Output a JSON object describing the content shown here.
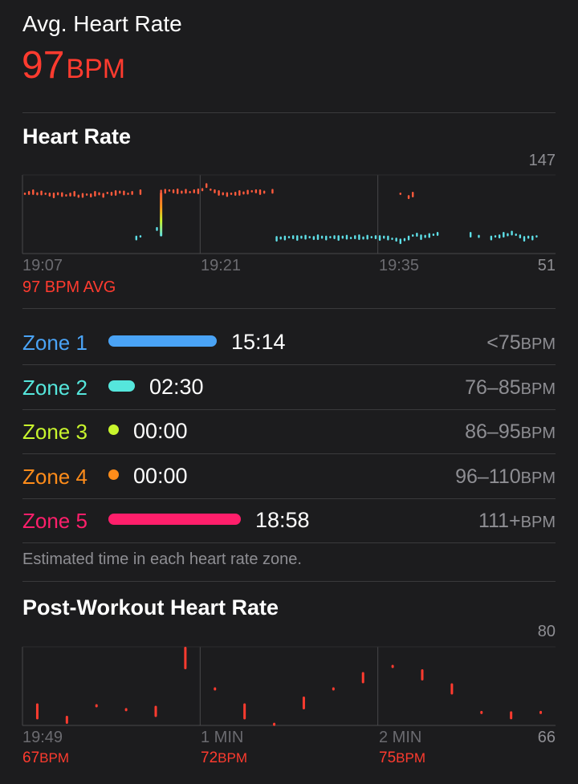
{
  "summary": {
    "label": "Avg. Heart Rate",
    "value": "97",
    "unit": "BPM",
    "accent": "#ff3b2f"
  },
  "heart_rate": {
    "title": "Heart Rate",
    "y_max_label": "147",
    "y_min_label": "51",
    "x_labels": [
      "19:07",
      "19:21",
      "19:35"
    ],
    "avg_label": "97 BPM AVG"
  },
  "zones": [
    {
      "name": "Zone 1",
      "time": "15:14",
      "range": "<75",
      "unit": "BPM",
      "color": "#4aa3f5",
      "fraction": 0.45
    },
    {
      "name": "Zone 2",
      "time": "02:30",
      "range": "76–85",
      "unit": "BPM",
      "color": "#55e6dc",
      "fraction": 0.11
    },
    {
      "name": "Zone 3",
      "time": "00:00",
      "range": "86–95",
      "unit": "BPM",
      "color": "#c8f52d",
      "fraction": 0
    },
    {
      "name": "Zone 4",
      "time": "00:00",
      "range": "96–110",
      "unit": "BPM",
      "color": "#ff8c1a",
      "fraction": 0
    },
    {
      "name": "Zone 5",
      "time": "18:58",
      "range": "111+",
      "unit": "BPM",
      "color": "#ff1f6b",
      "fraction": 0.55
    }
  ],
  "zones_note": "Estimated time in each heart rate zone.",
  "post_workout": {
    "title": "Post-Workout Heart Rate",
    "y_max_label": "80",
    "y_min_label": "66",
    "x_labels": [
      "19:49",
      "1 MIN",
      "2 MIN"
    ],
    "stats": [
      {
        "value": "67",
        "unit": "BPM"
      },
      {
        "value": "72",
        "unit": "BPM"
      },
      {
        "value": "75",
        "unit": "BPM"
      }
    ]
  },
  "chart_data": [
    {
      "type": "scatter",
      "title": "Heart Rate",
      "ylim": [
        51,
        147
      ],
      "x_ticks": [
        "19:07",
        "19:21",
        "19:35"
      ],
      "grid": true,
      "series": [
        {
          "color": "#ff5a3c",
          "points": [
            [
              0,
              124
            ],
            [
              0.5,
              125
            ],
            [
              1,
              126
            ],
            [
              1.5,
              124
            ],
            [
              2,
              125
            ],
            [
              2.5,
              124
            ],
            [
              3,
              123
            ],
            [
              3.5,
              122
            ],
            [
              4,
              124
            ],
            [
              4.5,
              123
            ],
            [
              5,
              122
            ],
            [
              5.5,
              123
            ],
            [
              6,
              124
            ],
            [
              6.5,
              121
            ],
            [
              7,
              122
            ],
            [
              7.5,
              123
            ],
            [
              8,
              122
            ],
            [
              8.5,
              124
            ],
            [
              9,
              124
            ],
            [
              9.5,
              122
            ],
            [
              10,
              125
            ],
            [
              10.5,
              124
            ],
            [
              11,
              125
            ],
            [
              11.5,
              126
            ],
            [
              12,
              125
            ],
            [
              12.5,
              124
            ],
            [
              13,
              125
            ],
            [
              14,
              126
            ],
            [
              16.5,
              127
            ],
            [
              17,
              127
            ],
            [
              17.5,
              128
            ],
            [
              18,
              127
            ],
            [
              18.5,
              127
            ],
            [
              19,
              126
            ],
            [
              19.5,
              127
            ],
            [
              20,
              126
            ],
            [
              20.5,
              127
            ],
            [
              21,
              127
            ],
            [
              21.5,
              129
            ],
            [
              22,
              134
            ],
            [
              22.5,
              129
            ],
            [
              23,
              127
            ],
            [
              23.5,
              125
            ],
            [
              24,
              124
            ],
            [
              24.5,
              123
            ],
            [
              25,
              124
            ],
            [
              25.5,
              124
            ],
            [
              26,
              125
            ],
            [
              26.5,
              125
            ],
            [
              27,
              126
            ],
            [
              27.5,
              127
            ],
            [
              28,
              127
            ],
            [
              28.5,
              126
            ],
            [
              29,
              126
            ],
            [
              30,
              127
            ],
            [
              45.5,
              124
            ],
            [
              46.5,
              120
            ],
            [
              47,
              123
            ]
          ]
        },
        {
          "color": "#5ee0e8",
          "points": [
            [
              13.5,
              70
            ],
            [
              14,
              72
            ],
            [
              16,
              81
            ],
            [
              30.5,
              69
            ],
            [
              31,
              70
            ],
            [
              31.5,
              70
            ],
            [
              32,
              71
            ],
            [
              32.5,
              71
            ],
            [
              33,
              70
            ],
            [
              33.5,
              71
            ],
            [
              34,
              71
            ],
            [
              34.5,
              71
            ],
            [
              35,
              70
            ],
            [
              35.5,
              71
            ],
            [
              36,
              71
            ],
            [
              36.5,
              70
            ],
            [
              37,
              71
            ],
            [
              37.5,
              71
            ],
            [
              38,
              70
            ],
            [
              38.5,
              71
            ],
            [
              39,
              71
            ],
            [
              39.5,
              70
            ],
            [
              40,
              71
            ],
            [
              40.5,
              71
            ],
            [
              41,
              70
            ],
            [
              41.5,
              71
            ],
            [
              42,
              71
            ],
            [
              42.5,
              71
            ],
            [
              43,
              70
            ],
            [
              43.5,
              71
            ],
            [
              44,
              70
            ],
            [
              44.5,
              69
            ],
            [
              45,
              68
            ],
            [
              45.5,
              66
            ],
            [
              46,
              68
            ],
            [
              46.5,
              70
            ],
            [
              47,
              73
            ],
            [
              47.5,
              74
            ],
            [
              48,
              71
            ],
            [
              48.5,
              72
            ],
            [
              49,
              73
            ],
            [
              49.5,
              74
            ],
            [
              50,
              75
            ],
            [
              54,
              74
            ],
            [
              55,
              72
            ],
            [
              56.5,
              70
            ],
            [
              57,
              72
            ],
            [
              57.5,
              72
            ],
            [
              58,
              74
            ],
            [
              58.5,
              74
            ],
            [
              59,
              76
            ],
            [
              59.5,
              74
            ],
            [
              60,
              72
            ],
            [
              60.5,
              69
            ],
            [
              61,
              71
            ],
            [
              61.5,
              70
            ],
            [
              62,
              72
            ]
          ]
        }
      ]
    },
    {
      "type": "scatter",
      "title": "Post-Workout Heart Rate",
      "ylim": [
        66,
        80
      ],
      "x_ticks": [
        "19:49",
        "1 MIN",
        "2 MIN"
      ],
      "grid": true,
      "series": [
        {
          "color": "#ff3b2f",
          "points": [
            [
              5,
              68.5
            ],
            [
              15,
              67
            ],
            [
              25,
              69.5
            ],
            [
              35,
              68.8
            ],
            [
              45,
              68.5
            ],
            [
              55,
              78
            ],
            [
              65,
              72.5
            ],
            [
              75,
              68.5
            ],
            [
              85,
              66.2
            ],
            [
              95,
              70
            ],
            [
              105,
              72.5
            ],
            [
              115,
              74.5
            ],
            [
              125,
              76.5
            ],
            [
              135,
              75
            ],
            [
              145,
              72.5
            ],
            [
              155,
              68.3
            ],
            [
              165,
              67.8
            ],
            [
              175,
              68.3
            ]
          ]
        }
      ]
    }
  ]
}
